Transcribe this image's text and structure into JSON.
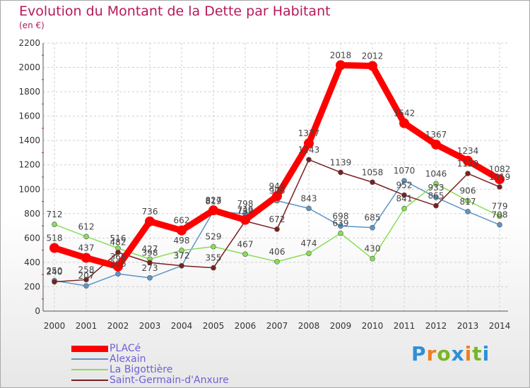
{
  "title": "Evolution du Montant de la Dette par Habitant",
  "subtitle": "(en €)",
  "logo": "Proxiti",
  "chart_data": {
    "type": "line",
    "x": [
      2000,
      2001,
      2002,
      2003,
      2004,
      2005,
      2006,
      2007,
      2008,
      2009,
      2010,
      2011,
      2012,
      2013,
      2014
    ],
    "ylim": [
      0,
      2200
    ],
    "yticks": [
      0,
      200,
      400,
      600,
      800,
      1000,
      1200,
      1400,
      1600,
      1800,
      2000,
      2200
    ],
    "grid": true,
    "legend_position": "bottom-left",
    "series": [
      {
        "name": "PLACé",
        "color": "#ff0000",
        "values": [
          518,
          437,
          366,
          736,
          662,
          827,
          749,
          944,
          1377,
          2018,
          2012,
          1542,
          1367,
          1234,
          1082
        ]
      },
      {
        "name": "Alexain",
        "color": "#5e94c6",
        "values": [
          250,
          207,
          306,
          273,
          372,
          819,
          798,
          906,
          843,
          698,
          685,
          1070,
          933,
          817,
          708
        ]
      },
      {
        "name": "La Bigottière",
        "color": "#88dd55",
        "values": [
          712,
          612,
          516,
          427,
          498,
          529,
          467,
          406,
          474,
          639,
          430,
          841,
          1046,
          906,
          779
        ]
      },
      {
        "name": "Saint-Germain-d'Anxure",
        "color": "#7a1f1f",
        "values": [
          240,
          258,
          482,
          398,
          372,
          355,
          739,
          672,
          1243,
          1139,
          1058,
          952,
          865,
          1129,
          1019
        ]
      }
    ]
  }
}
